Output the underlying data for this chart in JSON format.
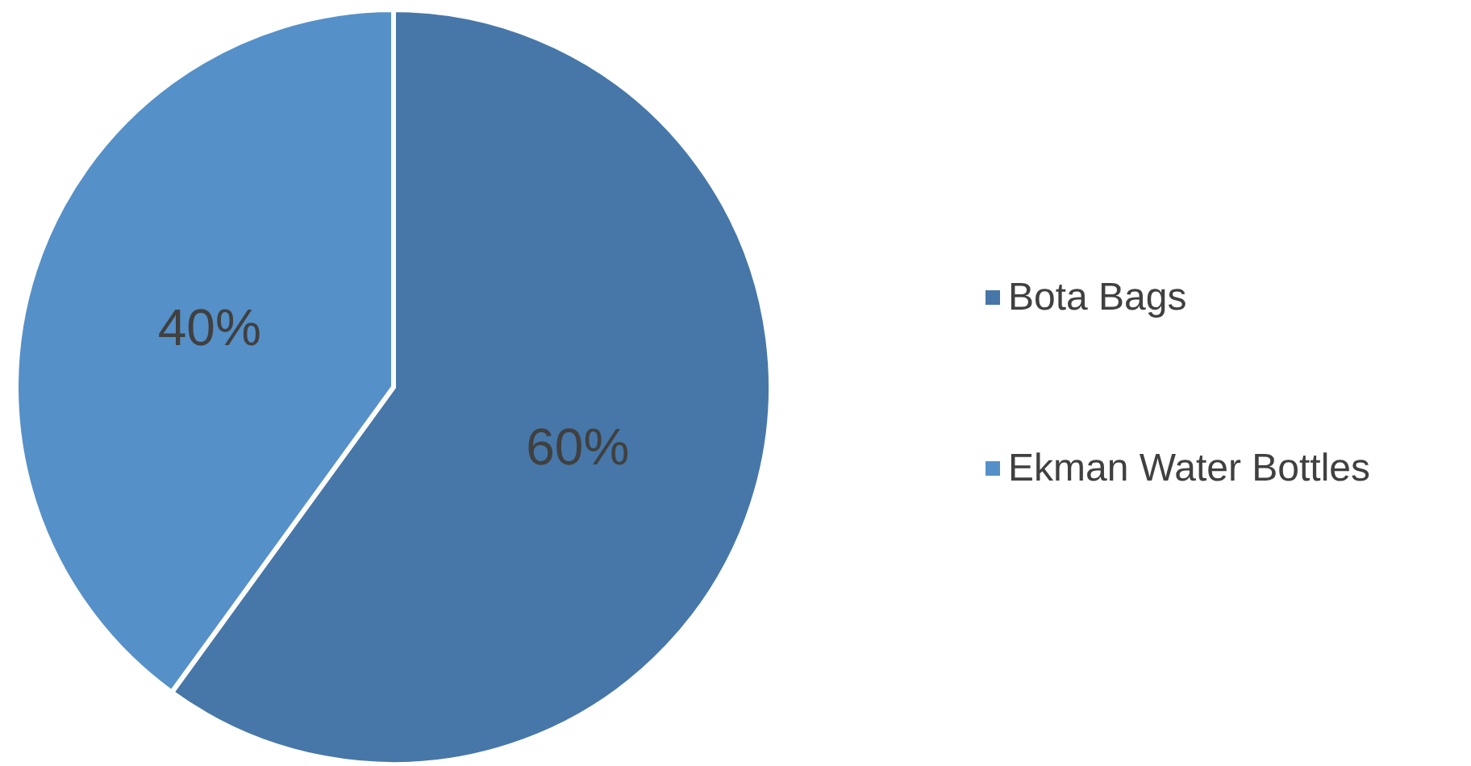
{
  "chart_data": {
    "type": "pie",
    "categories": [
      "Bota Bags",
      "Ekman Water Bottles"
    ],
    "values": [
      60,
      40
    ],
    "colors": [
      "#4677a8",
      "#5590c8"
    ],
    "value_labels": [
      "60%",
      "40%"
    ],
    "legend": "right"
  }
}
